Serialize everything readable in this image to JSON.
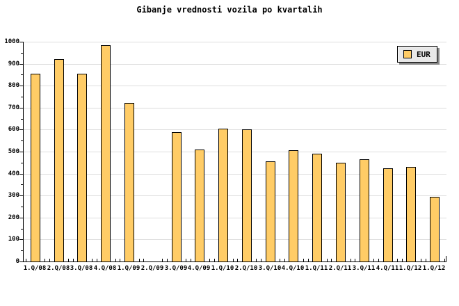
{
  "chart_data": {
    "type": "bar",
    "title": "Gibanje vrednosti vozila po kvartalih",
    "legend": "EUR",
    "legend_position": "top-right",
    "categories": [
      "1.Q/08",
      "2.Q/08",
      "3.Q/08",
      "4.Q/08",
      "1.Q/09",
      "2.Q/09",
      "3.Q/09",
      "4.Q/09",
      "1.Q/10",
      "2.Q/10",
      "3.Q/10",
      "4.Q/10",
      "1.Q/11",
      "2.Q/11",
      "3.Q/11",
      "4.Q/11",
      "1.Q/12",
      "1.Q/12"
    ],
    "values": [
      855,
      920,
      855,
      985,
      720,
      null,
      590,
      510,
      605,
      600,
      455,
      505,
      490,
      450,
      465,
      425,
      430,
      295
    ],
    "xlabel": "",
    "ylabel": "",
    "ylim": [
      0,
      1000
    ],
    "ytick_major": 100,
    "ytick_minor": 50,
    "ytick_labels": [
      "0",
      "100",
      "200",
      "300",
      "400",
      "500",
      "600",
      "700",
      "800",
      "900",
      "1000"
    ],
    "grid": true,
    "colors": {
      "bar_fill": "#FFCC66",
      "bar_border": "#000000",
      "gridline": "#DDDDDD",
      "axis": "#000000",
      "legend_bg": "#E8E8E8",
      "legend_shadow": "#888888",
      "text": "#000000",
      "background": "#FFFFFF"
    }
  }
}
